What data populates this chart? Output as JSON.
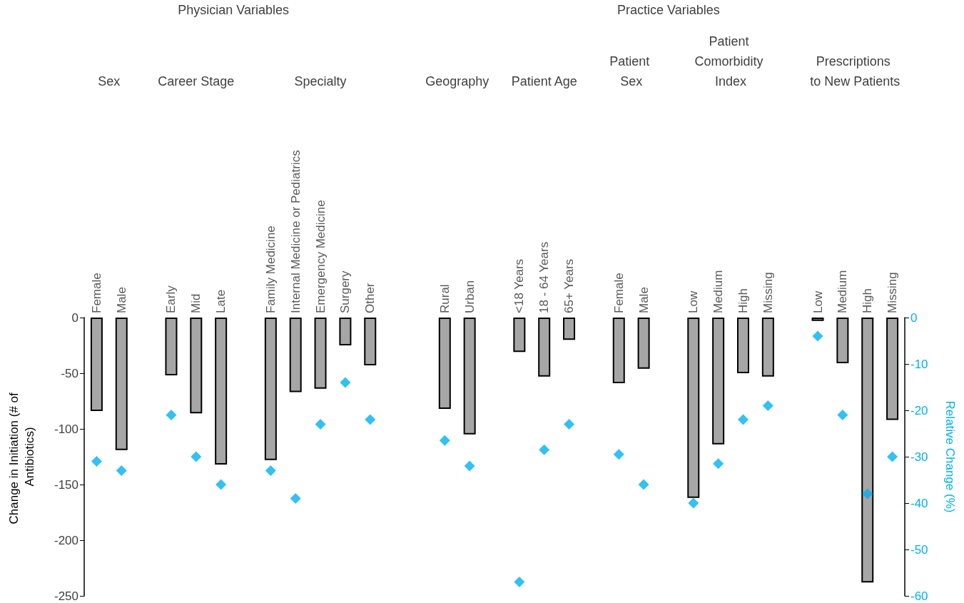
{
  "chart_data": {
    "type": "bar",
    "annotations": [
      "Physician Variables",
      "Practice Variables",
      "Sex",
      "Career Stage",
      "Specialty",
      "Geography",
      "Patient Age",
      "Patient Sex",
      "Patient Comorbidity Index",
      "Prescriptions to New Patients"
    ],
    "categories": [
      "Female",
      "Male",
      null,
      "Early",
      "Mid",
      "Late",
      null,
      "Family Medicine",
      "Internal Medicine or Pediatrics",
      "Emergency Medicine",
      "Surgery",
      "Other",
      null,
      null,
      "Rural",
      "Urban",
      null,
      "<18 Years",
      "18 - 64 Years",
      "65+ Years",
      null,
      "Female",
      "Male",
      null,
      "Low",
      "Medium",
      "High",
      "Missing",
      null,
      "Low",
      "Medium",
      "High",
      "Missing"
    ],
    "series": [
      {
        "color": "#a6a6a6",
        "values": [
          -84,
          -119,
          null,
          -52,
          -86,
          -132,
          null,
          -128,
          -67,
          -64,
          -25,
          -43,
          null,
          null,
          -82,
          -105,
          null,
          -31,
          -53,
          -20,
          null,
          -59,
          -46,
          null,
          -162,
          -114,
          -50,
          -53,
          null,
          -3,
          -41,
          -238,
          -92
        ]
      },
      {
        "type": "scatter",
        "axis": "y2",
        "color": "#00b0f0",
        "values": [
          -31,
          -33,
          null,
          -21,
          -30,
          -36,
          null,
          -33,
          -39,
          -23,
          -14,
          -22,
          null,
          null,
          -26.5,
          -32,
          null,
          -57,
          -28.5,
          -23,
          null,
          -29.5,
          -36,
          null,
          -40,
          -31.5,
          -22,
          -19,
          null,
          -4,
          -21,
          -38,
          -30
        ]
      }
    ],
    "ylabel": "Change in Initiation (# of Antibiotics)",
    "y2label": "Relative Change (%)",
    "ylim": [
      -250,
      0
    ],
    "yticks": [
      -250,
      -200,
      -150,
      -100,
      -50,
      0
    ],
    "y2lim": [
      -60,
      0
    ],
    "y2ticks": [
      -60,
      -50,
      -40,
      -30,
      -20,
      -10,
      0
    ],
    "marker": "diamond",
    "grid": false
  }
}
